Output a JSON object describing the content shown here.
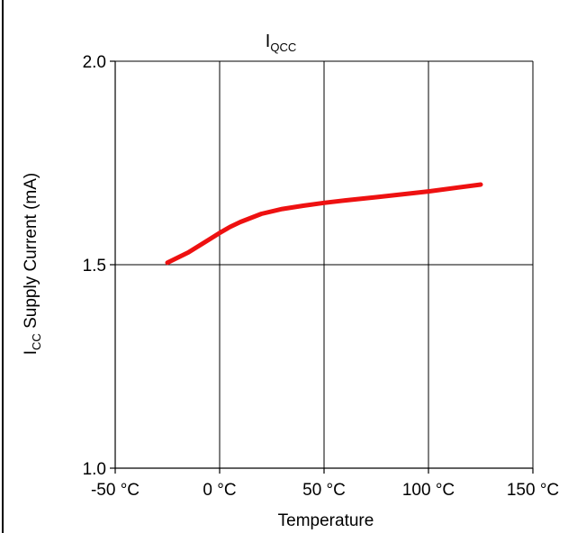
{
  "chart_data": {
    "type": "line",
    "title": "I",
    "title_subscript": "QCC",
    "xlabel": "Temperature",
    "ylabel_main": "I",
    "ylabel_subscript": "CC",
    "ylabel_rest": " Supply Current (mA)",
    "xlim": [
      -50,
      150
    ],
    "ylim": [
      1.0,
      2.0
    ],
    "x_ticks": [
      -50,
      0,
      50,
      100,
      150
    ],
    "x_tick_labels": [
      "-50 °C",
      "0 °C",
      "50 °C",
      "100 °C",
      "150 °C"
    ],
    "y_ticks": [
      1.0,
      1.5,
      2.0
    ],
    "y_tick_labels": [
      "1.0",
      "1.5",
      "2.0"
    ],
    "grid": true,
    "series": [
      {
        "color": "#ee1111",
        "x": [
          -25,
          -15,
          -5,
          0,
          5,
          10,
          20,
          30,
          40,
          50,
          60,
          75,
          100,
          125
        ],
        "y": [
          1.505,
          1.53,
          1.562,
          1.578,
          1.593,
          1.605,
          1.625,
          1.637,
          1.645,
          1.652,
          1.658,
          1.666,
          1.68,
          1.697
        ]
      }
    ]
  }
}
